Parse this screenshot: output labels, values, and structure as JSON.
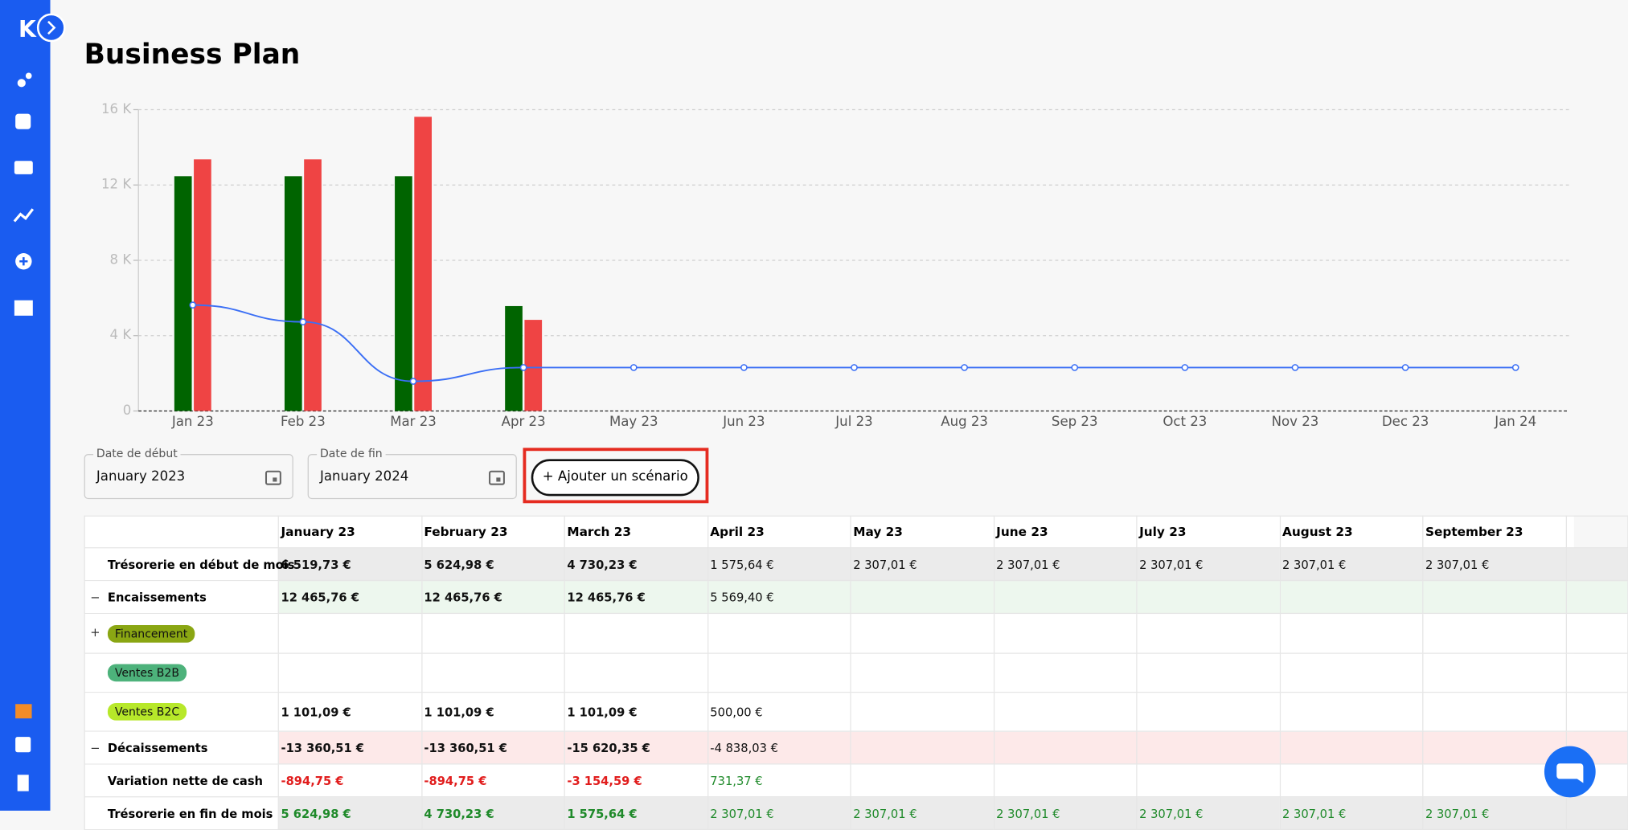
{
  "header": {
    "title": "Business Plan"
  },
  "chart_data": {
    "type": "bar",
    "categories": [
      "Jan 23",
      "Feb 23",
      "Mar 23",
      "Apr 23",
      "May 23",
      "Jun 23",
      "Jul 23",
      "Aug 23",
      "Sep 23",
      "Oct 23",
      "Nov 23",
      "Dec 23",
      "Jan 24"
    ],
    "series": [
      {
        "type": "bar",
        "color": "#006400",
        "values": [
          12465.76,
          12465.76,
          12465.76,
          5569.4,
          null,
          null,
          null,
          null,
          null,
          null,
          null,
          null,
          null
        ]
      },
      {
        "type": "bar",
        "color": "#ef4444",
        "values": [
          13360.51,
          13360.51,
          15620.35,
          4838.03,
          null,
          null,
          null,
          null,
          null,
          null,
          null,
          null,
          null
        ]
      },
      {
        "type": "line",
        "color": "#3b6ff5",
        "values": [
          5624.98,
          4730.23,
          1575.64,
          2307.01,
          2307.01,
          2307.01,
          2307.01,
          2307.01,
          2307.01,
          2307.01,
          2307.01,
          2307.01,
          2307.01
        ]
      }
    ],
    "ylim": [
      0,
      16000
    ],
    "yticks": [
      0,
      {
        "value": 4000,
        "label": "4 K"
      },
      {
        "value": 8000,
        "label": "8 K"
      },
      {
        "value": 12000,
        "label": "12 K"
      },
      {
        "value": 16000,
        "label": "16 K"
      }
    ],
    "grid": true
  },
  "filters": {
    "start": {
      "label": "Date de début",
      "value": "January 2023"
    },
    "end": {
      "label": "Date de fin",
      "value": "January 2024"
    }
  },
  "add_button": "+ Ajouter un scénario",
  "table": {
    "columns": [
      "January 23",
      "February 23",
      "March 23",
      "April 23",
      "May 23",
      "June 23",
      "July 23",
      "August 23",
      "September 23"
    ],
    "rows": [
      {
        "label": "Trésorerie en début de mois",
        "cells": [
          "6 519,73 €",
          "5 624,98 €",
          "4 730,23 €",
          "1 575,64 €",
          "2 307,01 €",
          "2 307,01 €",
          "2 307,01 €",
          "2 307,01 €",
          "2 307,01 €"
        ]
      },
      {
        "label": "Encaissements",
        "cells": [
          "12 465,76 €",
          "12 465,76 €",
          "12 465,76 €",
          "5 569,40 €",
          null,
          null,
          null,
          null,
          null
        ]
      },
      {
        "label": "Financement",
        "cells": [
          null,
          null,
          null,
          null,
          null,
          null,
          null,
          null,
          null
        ]
      },
      {
        "label": "Ventes B2B",
        "cells": [
          null,
          null,
          null,
          null,
          null,
          null,
          null,
          null,
          null
        ]
      },
      {
        "label": "Ventes B2C",
        "cells": [
          "1 101,09 €",
          "1 101,09 €",
          "1 101,09 €",
          "500,00 €",
          null,
          null,
          null,
          null,
          null
        ]
      },
      {
        "label": "Décaissements",
        "cells": [
          "-13 360,51 €",
          "-13 360,51 €",
          "-15 620,35 €",
          "-4 838,03 €",
          null,
          null,
          null,
          null,
          null
        ]
      },
      {
        "label": "Variation nette de cash",
        "cells": [
          "-894,75 €",
          "-894,75 €",
          "-3 154,59 €",
          "731,37 €",
          null,
          null,
          null,
          null,
          null
        ]
      },
      {
        "label": "Trésorerie en fin de mois",
        "cells": [
          "5 624,98 €",
          "4 730,23 €",
          "1 575,64 €",
          "2 307,01 €",
          "2 307,01 €",
          "2 307,01 €",
          "2 307,01 €",
          "2 307,01 €",
          "2 307,01 €"
        ]
      }
    ]
  }
}
